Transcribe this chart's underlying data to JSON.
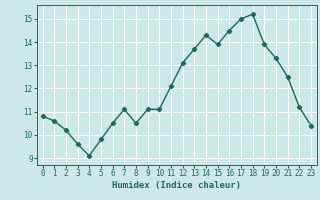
{
  "x": [
    0,
    1,
    2,
    3,
    4,
    5,
    6,
    7,
    8,
    9,
    10,
    11,
    12,
    13,
    14,
    15,
    16,
    17,
    18,
    19,
    20,
    21,
    22,
    23
  ],
  "y": [
    10.8,
    10.6,
    10.2,
    9.6,
    9.1,
    9.8,
    10.5,
    11.1,
    10.5,
    11.1,
    11.1,
    12.1,
    13.1,
    13.7,
    14.3,
    13.9,
    14.5,
    15.0,
    15.2,
    13.9,
    13.3,
    12.5,
    11.2,
    10.4
  ],
  "line_color": "#1a6b5a",
  "marker": "D",
  "marker_size": 2.2,
  "line_width": 1.0,
  "bg_color": "#cde8e8",
  "grid_color": "#ffffff",
  "xlabel": "Humidex (Indice chaleur)",
  "xlabel_color": "#1a6b5a",
  "xlabel_fontsize": 6.5,
  "tick_color": "#1a6b5a",
  "tick_fontsize": 5.5,
  "ylim": [
    8.7,
    15.6
  ],
  "xlim": [
    -0.5,
    23.5
  ],
  "yticks": [
    9,
    10,
    11,
    12,
    13,
    14,
    15
  ],
  "xticks": [
    0,
    1,
    2,
    3,
    4,
    5,
    6,
    7,
    8,
    9,
    10,
    11,
    12,
    13,
    14,
    15,
    16,
    17,
    18,
    19,
    20,
    21,
    22,
    23
  ]
}
